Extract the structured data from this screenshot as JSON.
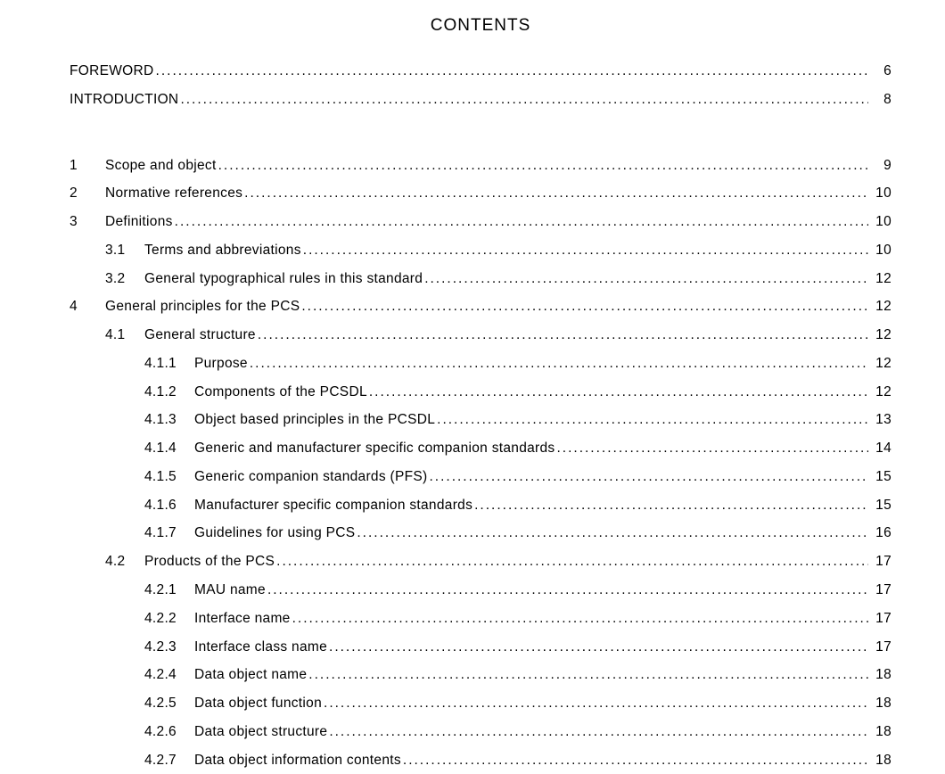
{
  "title": "CONTENTS",
  "front": [
    {
      "label": "FOREWORD",
      "page": "6"
    },
    {
      "label": "INTRODUCTION",
      "page": "8"
    }
  ],
  "entries": [
    {
      "level": 1,
      "num": "1",
      "label": "Scope and object",
      "page": "9"
    },
    {
      "level": 1,
      "num": "2",
      "label": "Normative references",
      "page": "10"
    },
    {
      "level": 1,
      "num": "3",
      "label": "Definitions",
      "page": "10"
    },
    {
      "level": 2,
      "num": "3.1",
      "label": "Terms and abbreviations",
      "page": "10"
    },
    {
      "level": 2,
      "num": "3.2",
      "label": "General typographical rules in this standard",
      "page": "12"
    },
    {
      "level": 1,
      "num": "4",
      "label": "General principles for the PCS",
      "page": "12"
    },
    {
      "level": 2,
      "num": "4.1",
      "label": "General structure",
      "page": "12"
    },
    {
      "level": 3,
      "num": "4.1.1",
      "label": "Purpose",
      "page": "12"
    },
    {
      "level": 3,
      "num": "4.1.2",
      "label": "Components of the PCSDL",
      "page": "12"
    },
    {
      "level": 3,
      "num": "4.1.3",
      "label": "Object based principles in the PCSDL",
      "page": "13"
    },
    {
      "level": 3,
      "num": "4.1.4",
      "label": "Generic and manufacturer specific companion standards",
      "page": "14"
    },
    {
      "level": 3,
      "num": "4.1.5",
      "label": "Generic companion standards (PFS)",
      "page": "15"
    },
    {
      "level": 3,
      "num": "4.1.6",
      "label": "Manufacturer specific companion standards",
      "page": "15"
    },
    {
      "level": 3,
      "num": "4.1.7",
      "label": "Guidelines for using PCS",
      "page": "16"
    },
    {
      "level": 2,
      "num": "4.2",
      "label": "Products of the PCS",
      "page": "17"
    },
    {
      "level": 3,
      "num": "4.2.1",
      "label": "MAU name",
      "page": "17"
    },
    {
      "level": 3,
      "num": "4.2.2",
      "label": "Interface name",
      "page": "17"
    },
    {
      "level": 3,
      "num": "4.2.3",
      "label": "Interface class name",
      "page": "17"
    },
    {
      "level": 3,
      "num": "4.2.4",
      "label": "Data object name",
      "page": "18"
    },
    {
      "level": 3,
      "num": "4.2.5",
      "label": "Data object function",
      "page": "18"
    },
    {
      "level": 3,
      "num": "4.2.6",
      "label": "Data object structure",
      "page": "18"
    },
    {
      "level": 3,
      "num": "4.2.7",
      "label": "Data object information contents",
      "page": "18"
    }
  ]
}
